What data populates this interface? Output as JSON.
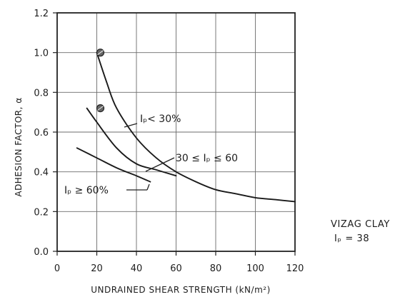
{
  "chart_data": {
    "type": "line",
    "xlabel": "UNDRAINED SHEAR STRENGTH (kN/m²)",
    "ylabel": "ADHESION FACTOR, α",
    "xlim": [
      0,
      120
    ],
    "ylim": [
      0,
      1.2
    ],
    "x_ticks": [
      "0",
      "20",
      "40",
      "60",
      "80",
      "100",
      "120"
    ],
    "y_ticks": [
      "0.0",
      "0.2",
      "0.4",
      "0.6",
      "0.8",
      "1.0",
      "1.2"
    ],
    "grid": true,
    "series": [
      {
        "name": "Iₚ< 30%",
        "x": [
          20,
          25,
          30,
          40,
          50,
          60,
          70,
          80,
          90,
          100,
          110,
          120
        ],
        "y": [
          1.0,
          0.85,
          0.72,
          0.57,
          0.47,
          0.4,
          0.35,
          0.31,
          0.29,
          0.27,
          0.26,
          0.25
        ]
      },
      {
        "name": "30 ≤ Iₚ ≤ 60",
        "x": [
          15,
          20,
          30,
          40,
          50,
          60
        ],
        "y": [
          0.72,
          0.65,
          0.52,
          0.44,
          0.41,
          0.38
        ]
      },
      {
        "name": "Iₚ ≥ 60%",
        "x": [
          10,
          20,
          30,
          40,
          47
        ],
        "y": [
          0.52,
          0.47,
          0.42,
          0.38,
          0.35
        ]
      }
    ],
    "markers": [
      {
        "x": 20,
        "y": 1.0
      },
      {
        "x": 20,
        "y": 0.72
      }
    ],
    "annotations": [
      "Iₚ< 30%",
      "30 ≤ Iₚ ≤ 60",
      "Iₚ ≥ 60%"
    ]
  },
  "side_note": {
    "line1": "VIZAG CLAY",
    "line2": "Iₚ = 38"
  }
}
